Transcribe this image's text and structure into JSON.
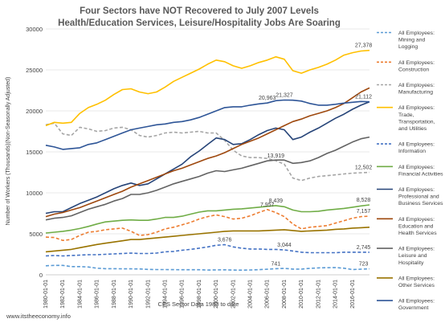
{
  "chart_data": {
    "type": "line",
    "title": "Four Sectors have NOT Recovered to July 2007 Levels",
    "subtitle": "Health/Education Services, Leisure/Hospitality Jobs Are Soaring",
    "ylabel": "Number of Workers (Thousands)(Non-Seasonally Adjusted)",
    "xlabel": "CES Sector Data 1980 to date",
    "source": "www.itstheeconomy.info",
    "ylim": [
      0,
      30000
    ],
    "yticks": [
      0,
      5000,
      10000,
      15000,
      20000,
      25000,
      30000
    ],
    "xlim": [
      1980,
      2018
    ],
    "xticks": [
      "1980-01-01",
      "1982-01-01",
      "1984-01-01",
      "1986-01-01",
      "1988-01-01",
      "1990-01-01",
      "1992-01-01",
      "1994-01-01",
      "1996-01-01",
      "1998-01-01",
      "2000-01-01",
      "2002-01-01",
      "2004-01-01",
      "2006-01-01",
      "2008-01-01",
      "2010-01-01",
      "2012-01-01",
      "2014-01-01",
      "2016-01-01"
    ],
    "grid": true,
    "legend_position": "right",
    "x": [
      1980,
      1981,
      1982,
      1983,
      1984,
      1985,
      1986,
      1987,
      1988,
      1989,
      1990,
      1991,
      1992,
      1993,
      1994,
      1995,
      1996,
      1997,
      1998,
      1999,
      2000,
      2001,
      2002,
      2003,
      2004,
      2005,
      2006,
      2007,
      2008,
      2009,
      2010,
      2011,
      2012,
      2013,
      2014,
      2015,
      2016,
      2017,
      2018
    ],
    "series": [
      {
        "name": "All Employees: Mining and Logging",
        "color": "#5b9bd5",
        "dash": "dashed",
        "values": [
          1100,
          1150,
          1150,
          1000,
          1000,
          950,
          800,
          750,
          750,
          730,
          730,
          720,
          660,
          640,
          640,
          630,
          620,
          620,
          620,
          580,
          600,
          610,
          580,
          570,
          590,
          630,
          680,
          741,
          780,
          700,
          700,
          780,
          840,
          860,
          880,
          800,
          640,
          690,
          723
        ]
      },
      {
        "name": "All Employees: Construction",
        "color": "#ed7d31",
        "dash": "dashed",
        "values": [
          4600,
          4550,
          4200,
          4300,
          4800,
          5200,
          5300,
          5500,
          5600,
          5700,
          5300,
          4800,
          4900,
          5200,
          5600,
          5800,
          6100,
          6400,
          6800,
          7100,
          7300,
          7100,
          6800,
          6900,
          7200,
          7600,
          7957,
          7600,
          7100,
          6200,
          5600,
          5800,
          5900,
          6000,
          6300,
          6600,
          6900,
          7100,
          7157
        ]
      },
      {
        "name": "All Employees: Manufacturing",
        "color": "#a5a5a5",
        "dash": "dashed",
        "values": [
          18300,
          18500,
          17200,
          17000,
          18000,
          17800,
          17500,
          17600,
          17900,
          18000,
          17700,
          17000,
          16800,
          17000,
          17300,
          17400,
          17300,
          17400,
          17500,
          17300,
          17300,
          16400,
          15200,
          14500,
          14300,
          14300,
          14200,
          13919,
          13500,
          11800,
          11500,
          11800,
          12000,
          12100,
          12200,
          12300,
          12400,
          12450,
          12502
        ]
      },
      {
        "name": "All Employees: Trade, Transportation, and Utilities",
        "color": "#ffc000",
        "dash": "solid",
        "values": [
          18200,
          18600,
          18500,
          18600,
          19700,
          20400,
          20800,
          21300,
          22000,
          22600,
          22700,
          22300,
          22100,
          22300,
          22900,
          23600,
          24100,
          24600,
          25100,
          25700,
          26200,
          26000,
          25500,
          25200,
          25500,
          25900,
          26200,
          26600,
          26300,
          24900,
          24600,
          25000,
          25300,
          25700,
          26200,
          26800,
          27100,
          27300,
          27378
        ]
      },
      {
        "name": "All Employees: Information",
        "color": "#4472c4",
        "dash": "dashed",
        "values": [
          2300,
          2350,
          2300,
          2350,
          2400,
          2450,
          2450,
          2500,
          2550,
          2600,
          2650,
          2600,
          2600,
          2650,
          2800,
          2850,
          3000,
          3100,
          3250,
          3400,
          3600,
          3676,
          3400,
          3250,
          3150,
          3150,
          3100,
          3100,
          3044,
          2900,
          2750,
          2700,
          2700,
          2700,
          2700,
          2750,
          2750,
          2750,
          2745
        ]
      },
      {
        "name": "All Employees: Financial Activities",
        "color": "#70ad47",
        "dash": "solid",
        "values": [
          5100,
          5200,
          5300,
          5450,
          5650,
          5900,
          6200,
          6450,
          6550,
          6650,
          6700,
          6650,
          6650,
          6800,
          7000,
          7000,
          7150,
          7400,
          7650,
          7800,
          7800,
          7900,
          8000,
          8050,
          8150,
          8250,
          8350,
          8439,
          8300,
          7900,
          7700,
          7700,
          7750,
          7900,
          8000,
          8100,
          8250,
          8400,
          8528
        ]
      },
      {
        "name": "All Employees: Professional and Business Services",
        "color": "#264478",
        "dash": "solid",
        "values": [
          7500,
          7700,
          7700,
          8200,
          8700,
          9100,
          9500,
          10000,
          10500,
          10900,
          11200,
          10900,
          11100,
          11700,
          12300,
          12900,
          13500,
          14400,
          15100,
          15900,
          16700,
          16500,
          15900,
          16000,
          16500,
          17100,
          17600,
          17900,
          17700,
          16500,
          16800,
          17400,
          17900,
          18500,
          19100,
          19600,
          20200,
          20700,
          21112
        ]
      },
      {
        "name": "All Employees: Education and Health Services",
        "color": "#9e480e",
        "dash": "solid",
        "values": [
          7100,
          7400,
          7600,
          7900,
          8200,
          8600,
          9000,
          9400,
          9800,
          10200,
          10700,
          11100,
          11500,
          11900,
          12300,
          12700,
          13000,
          13400,
          13800,
          14200,
          14500,
          14900,
          15400,
          15900,
          16300,
          16700,
          17200,
          17700,
          18200,
          18700,
          19000,
          19400,
          19700,
          20000,
          20400,
          20900,
          21600,
          22300,
          22800
        ]
      },
      {
        "name": "All Employees: Leisure and Hospitality",
        "color": "#636363",
        "dash": "solid",
        "values": [
          6700,
          6900,
          7000,
          7200,
          7600,
          8000,
          8300,
          8600,
          9000,
          9300,
          9800,
          9800,
          10000,
          10300,
          10700,
          11100,
          11400,
          11700,
          12000,
          12400,
          12700,
          12600,
          12800,
          13000,
          13300,
          13600,
          13900,
          14000,
          14000,
          13600,
          13700,
          13900,
          14300,
          14800,
          15200,
          15700,
          16200,
          16600,
          16800
        ]
      },
      {
        "name": "All Employees: Other Services",
        "color": "#997300",
        "dash": "solid",
        "values": [
          2800,
          2900,
          3000,
          3100,
          3300,
          3500,
          3700,
          3850,
          4000,
          4150,
          4300,
          4300,
          4400,
          4500,
          4600,
          4700,
          4800,
          4900,
          5000,
          5100,
          5200,
          5300,
          5350,
          5350,
          5350,
          5350,
          5400,
          5450,
          5500,
          5400,
          5300,
          5350,
          5400,
          5450,
          5550,
          5600,
          5700,
          5750,
          5800
        ]
      },
      {
        "name": "All Employees: Government",
        "color": "#2e5597",
        "dash": "solid",
        "values": [
          15800,
          15600,
          15300,
          15400,
          15500,
          15900,
          16100,
          16500,
          16900,
          17300,
          17700,
          17900,
          18100,
          18300,
          18400,
          18600,
          18700,
          18900,
          19200,
          19600,
          20000,
          20400,
          20500,
          20500,
          20700,
          20850,
          20963,
          21250,
          21327,
          21300,
          21200,
          20900,
          20700,
          20700,
          20800,
          20950,
          21050,
          21150,
          21112
        ]
      }
    ],
    "annotations": [
      {
        "text": "27,378",
        "x": 2017.3,
        "y": 27378
      },
      {
        "text": "20,963",
        "x": 2006,
        "y": 20963
      },
      {
        "text": "21,327",
        "x": 2008,
        "y": 21327
      },
      {
        "text": "21,112",
        "x": 2017.3,
        "y": 21112
      },
      {
        "text": "13,919",
        "x": 2007,
        "y": 13919
      },
      {
        "text": "12,502",
        "x": 2017.3,
        "y": 12502
      },
      {
        "text": "8,439",
        "x": 2007,
        "y": 8439
      },
      {
        "text": "7,957",
        "x": 2006,
        "y": 7957
      },
      {
        "text": "8,528",
        "x": 2017.3,
        "y": 8528
      },
      {
        "text": "7,157",
        "x": 2017.3,
        "y": 7157
      },
      {
        "text": "3,676",
        "x": 2001,
        "y": 3676
      },
      {
        "text": "3,044",
        "x": 2008,
        "y": 3044
      },
      {
        "text": "2,745",
        "x": 2017.3,
        "y": 2745
      },
      {
        "text": "741",
        "x": 2007,
        "y": 741
      },
      {
        "text": "723",
        "x": 2017.3,
        "y": 723
      }
    ]
  }
}
